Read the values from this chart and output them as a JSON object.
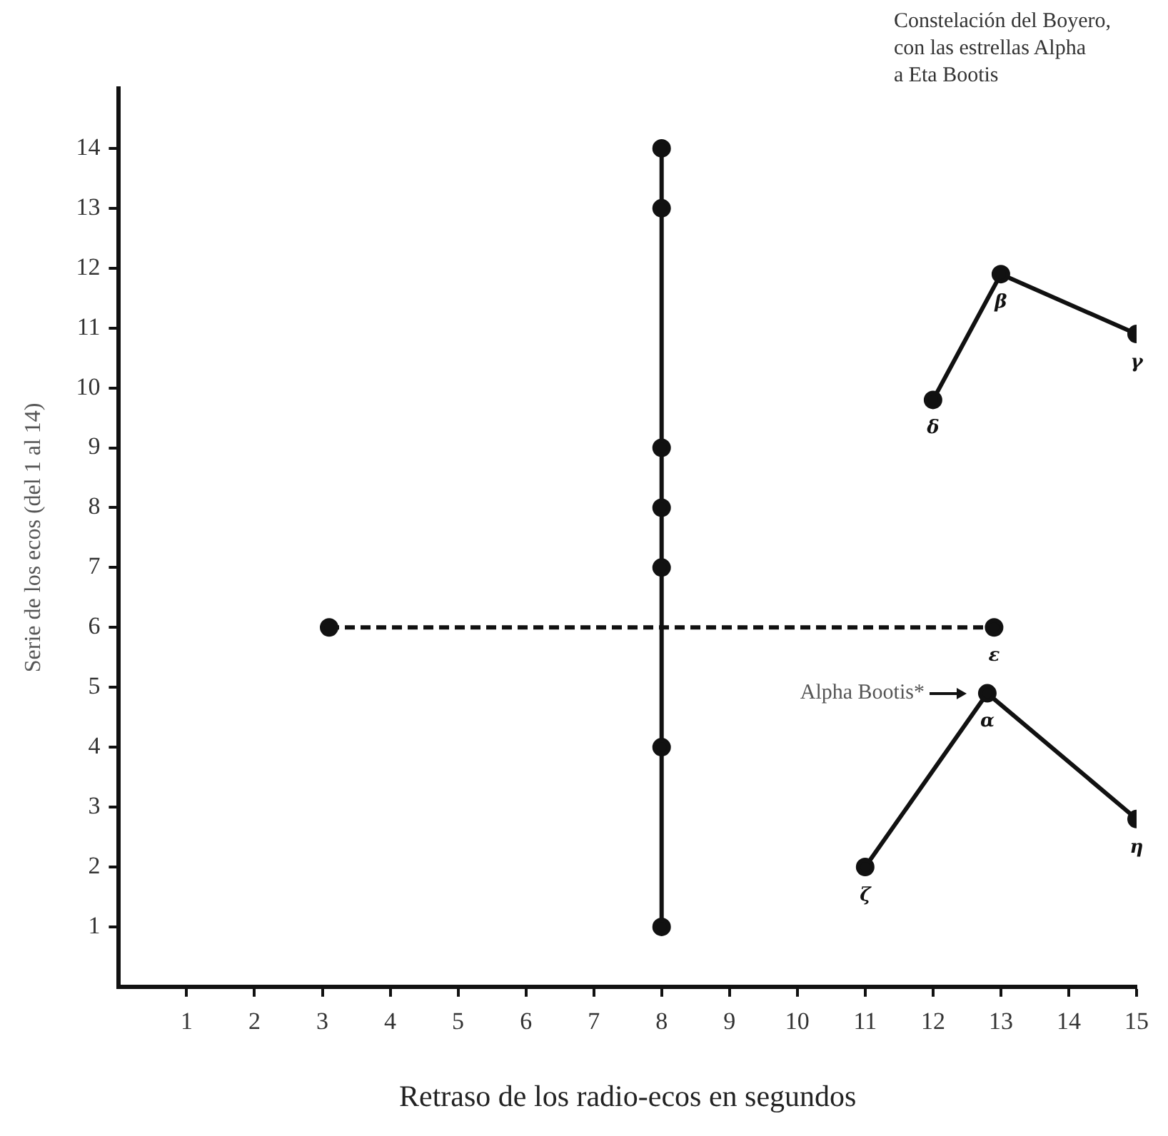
{
  "chart_data": {
    "type": "line",
    "xlabel": "Retraso de los radio-ecos en segundos",
    "ylabel": "Serie de los ecos (del 1 al 14)",
    "xlim": [
      0,
      15
    ],
    "xticks": [
      1,
      2,
      3,
      4,
      5,
      6,
      7,
      8,
      9,
      10,
      11,
      12,
      13,
      14,
      15
    ],
    "ylim": [
      0,
      15
    ],
    "yticks": [
      1,
      2,
      3,
      4,
      5,
      6,
      7,
      8,
      9,
      10,
      11,
      12,
      13,
      14
    ],
    "grid": false,
    "legend": false,
    "marker": "circle",
    "series": [
      {
        "color": "#111111",
        "x": [
          8,
          8,
          8,
          8,
          8,
          8,
          8
        ],
        "values": [
          1,
          4,
          7,
          8,
          9,
          13,
          14
        ]
      },
      {
        "color": "#111111",
        "line_style": "dashed",
        "x": [
          3.1,
          12.9
        ],
        "values": [
          6,
          6
        ]
      },
      {
        "color": "#111111",
        "x": [
          12,
          13,
          15
        ],
        "values": [
          9.8,
          11.9,
          10.9
        ]
      },
      {
        "color": "#111111",
        "x": [
          11,
          12.8,
          15
        ],
        "values": [
          2,
          4.9,
          2.8
        ]
      }
    ],
    "annotations": [
      "Constelación del Boyero,\ncon las estrellas Alpha\na Eta Bootis",
      {
        "text": "β",
        "x": 13,
        "y": 11.9
      },
      {
        "text": "γ",
        "x": 15,
        "y": 10.9
      },
      {
        "text": "δ",
        "x": 12,
        "y": 9.8
      },
      {
        "text": "ε",
        "x": 12.9,
        "y": 6
      },
      {
        "text": "α",
        "x": 12.8,
        "y": 4.9
      },
      {
        "text": "Alpha Bootis*",
        "x": 12.8,
        "y": 4.9
      },
      {
        "text": "ζ",
        "x": 11,
        "y": 2
      },
      {
        "text": "η",
        "x": 15,
        "y": 2.8
      }
    ]
  }
}
